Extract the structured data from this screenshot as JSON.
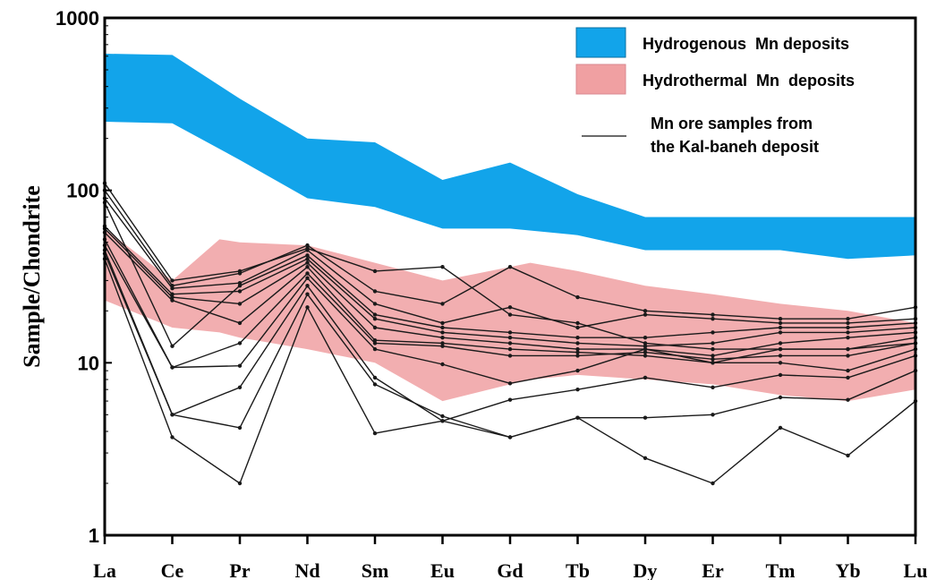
{
  "chart_data": {
    "type": "line",
    "ylabel": "Sample/Chondrite",
    "xlabel": "",
    "yscale": "log",
    "ylim": [
      1,
      1000
    ],
    "yticks": [
      "1",
      "10",
      "100",
      "1000"
    ],
    "categories": [
      "La",
      "Ce",
      "Pr",
      "Nd",
      "Sm",
      "Eu",
      "Gd",
      "Tb",
      "Dy",
      "Er",
      "Tm",
      "Yb",
      "Lu"
    ],
    "legend": {
      "position": "top-right",
      "items": [
        {
          "label": "Hydrogenous  Mn deposits",
          "kind": "band",
          "color": "#12a4ea"
        },
        {
          "label": "Hydrothermal  Mn  deposits",
          "kind": "band",
          "color": "#f0a0a2"
        },
        {
          "label_lines": [
            "Mn ore samples from",
            "the Kal-baneh deposit"
          ],
          "kind": "line",
          "color": "#111111"
        }
      ]
    },
    "bands": [
      {
        "name": "Hydrogenous  Mn deposits",
        "color": "#12a4ea",
        "x": [
          0,
          1,
          2,
          3,
          4,
          5,
          6,
          7,
          8,
          9,
          10,
          11,
          12
        ],
        "upper": [
          620,
          610,
          340,
          200,
          190,
          115,
          145,
          95,
          70,
          70,
          70,
          70,
          70
        ],
        "lower": [
          250,
          245,
          150,
          90,
          80,
          60,
          60,
          55,
          45,
          45,
          45,
          40,
          42
        ]
      },
      {
        "name": "Hydrothermal  Mn  deposits",
        "color": "#f0a0a2",
        "x": [
          0,
          1,
          1.7,
          2,
          3,
          4,
          5,
          6,
          6.3,
          7,
          8,
          9,
          10,
          11,
          12
        ],
        "upper": [
          60,
          30,
          52,
          50,
          48,
          38,
          30,
          36,
          38,
          34,
          28,
          25,
          22,
          20,
          17
        ],
        "lower": [
          23,
          16,
          15,
          14,
          12,
          10,
          6.0,
          7.5,
          8.0,
          8.5,
          8.0,
          7.5,
          6.5,
          6.0,
          7.0
        ]
      }
    ],
    "series": [
      {
        "values": [
          110,
          30,
          34,
          46,
          34,
          36,
          19,
          17,
          13,
          12,
          12,
          12,
          13
        ]
      },
      {
        "values": [
          100,
          28,
          33,
          48,
          26,
          22,
          36,
          24,
          20,
          19,
          18,
          18,
          21
        ]
      },
      {
        "values": [
          90,
          27,
          29,
          45,
          22,
          17,
          21,
          16,
          19,
          18,
          17,
          17,
          18
        ]
      },
      {
        "values": [
          85,
          12.5,
          28,
          42,
          19,
          16,
          15,
          14,
          14,
          15,
          16,
          16,
          17
        ]
      },
      {
        "values": [
          62,
          25,
          26,
          40,
          18,
          15,
          14,
          13,
          12.5,
          13,
          15,
          15,
          16
        ]
      },
      {
        "values": [
          60,
          24,
          22,
          38,
          16,
          14,
          13,
          12,
          12,
          11,
          13,
          14,
          15
        ]
      },
      {
        "values": [
          57,
          23,
          17,
          36,
          13.5,
          13,
          12,
          11.5,
          11,
          10,
          12,
          12,
          14
        ]
      },
      {
        "values": [
          52,
          9.4,
          13,
          33,
          13,
          12.5,
          11,
          11,
          11.5,
          10.5,
          11,
          11,
          13
        ]
      },
      {
        "values": [
          48,
          9.4,
          9.6,
          31,
          12,
          9.8,
          7.6,
          9.0,
          12,
          10,
          10,
          9.0,
          12
        ]
      },
      {
        "values": [
          45,
          5.0,
          7.2,
          28,
          8.2,
          4.6,
          6.1,
          7.0,
          8.2,
          7.2,
          8.5,
          8.2,
          11
        ]
      },
      {
        "values": [
          43,
          5.0,
          4.2,
          25,
          7.5,
          4.9,
          3.7,
          4.8,
          4.8,
          5.0,
          6.3,
          6.1,
          9.0
        ]
      },
      {
        "values": [
          40,
          3.7,
          2.0,
          21,
          3.9,
          4.6,
          3.7,
          4.8,
          2.8,
          2.0,
          4.2,
          2.9,
          6.0
        ]
      }
    ]
  }
}
